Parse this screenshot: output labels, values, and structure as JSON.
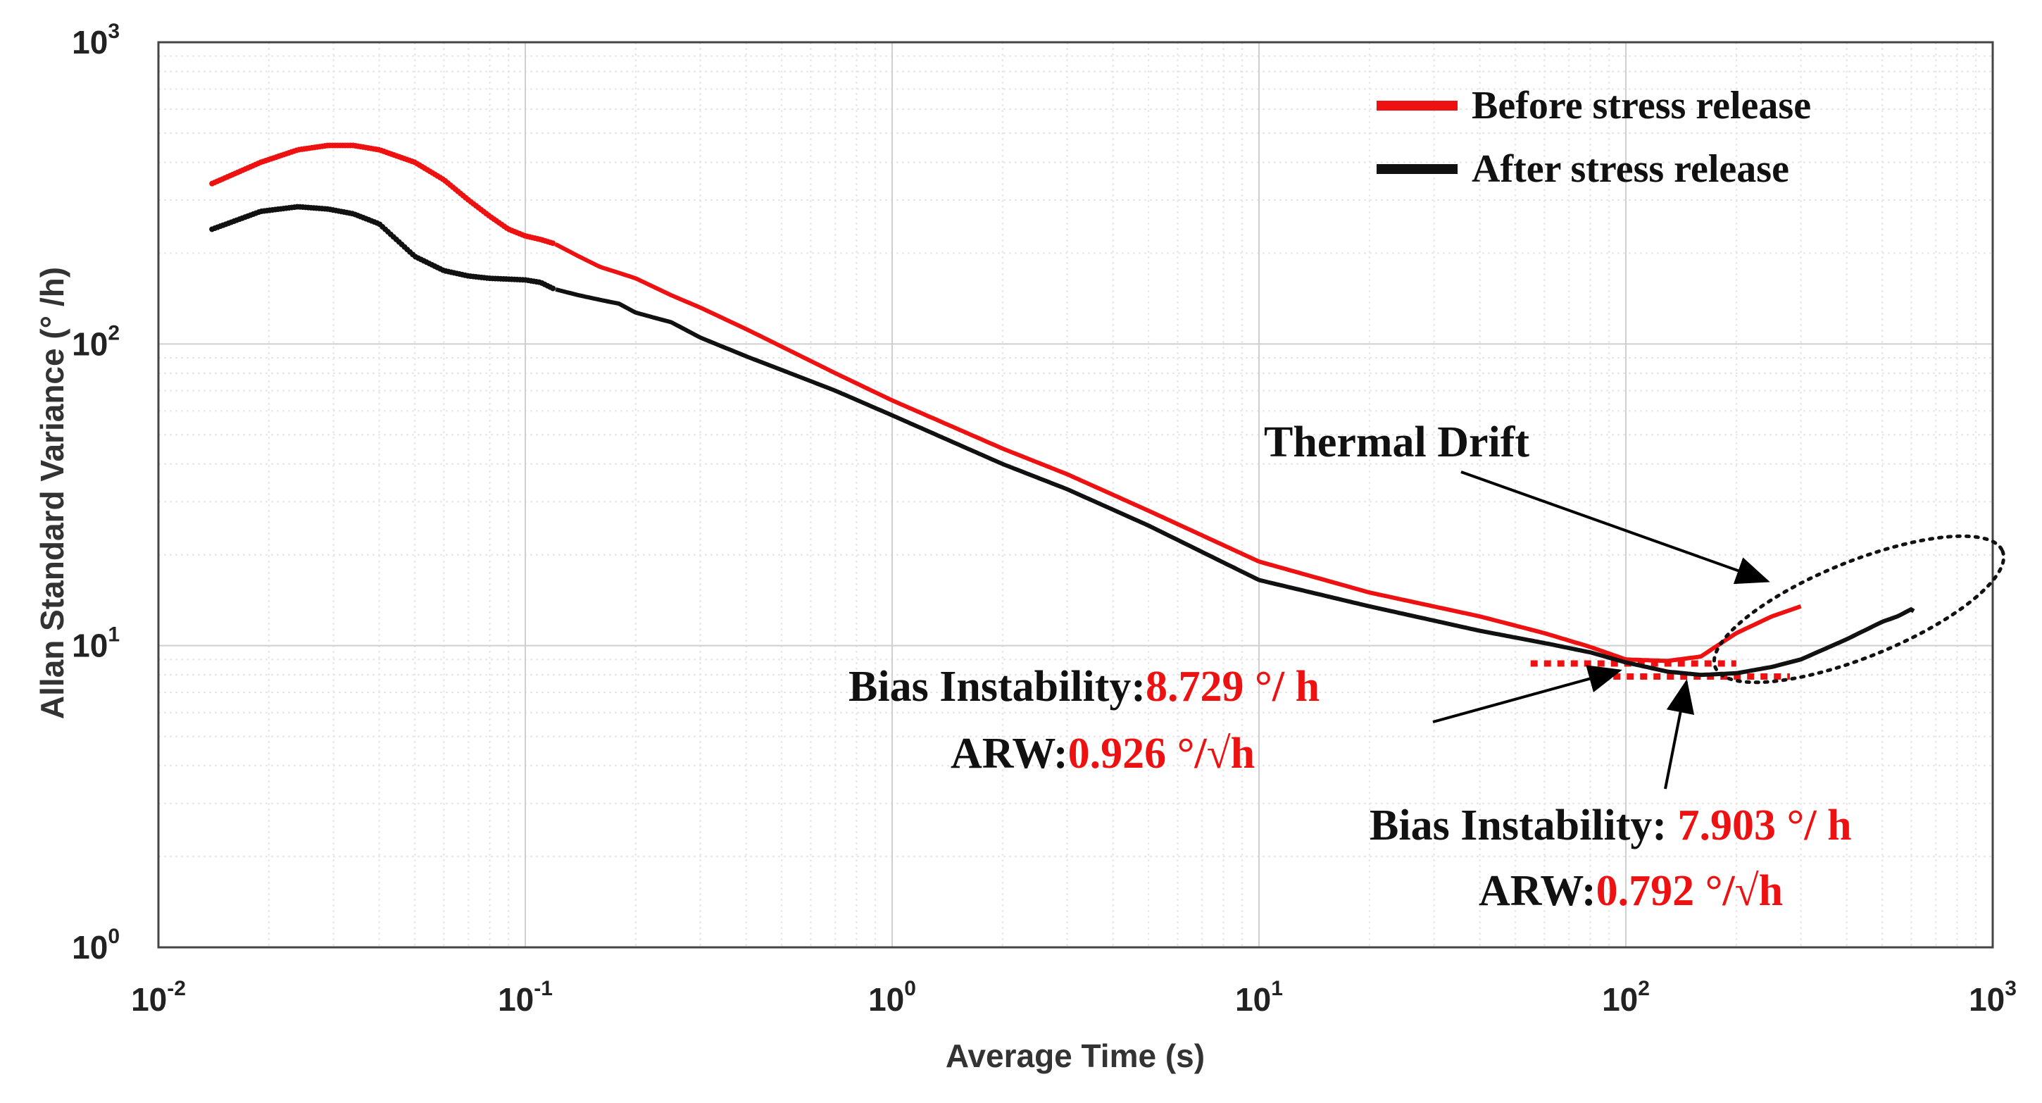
{
  "chart_data": {
    "type": "line",
    "xscale": "log",
    "yscale": "log",
    "xlim": [
      0.01,
      1000
    ],
    "ylim": [
      1,
      1000
    ],
    "xlabel": "Average Time (s)",
    "ylabel": "Allan Standard Variance (° /h)",
    "grid": true,
    "legend_position": "top-right",
    "x_ticks": [
      {
        "base": "10",
        "exp": "-2"
      },
      {
        "base": "10",
        "exp": "-1"
      },
      {
        "base": "10",
        "exp": "0"
      },
      {
        "base": "10",
        "exp": "1"
      },
      {
        "base": "10",
        "exp": "2"
      },
      {
        "base": "10",
        "exp": "3"
      }
    ],
    "y_ticks": [
      {
        "base": "10",
        "exp": "0"
      },
      {
        "base": "10",
        "exp": "1"
      },
      {
        "base": "10",
        "exp": "2"
      },
      {
        "base": "10",
        "exp": "3"
      }
    ],
    "series": [
      {
        "name": "Before stress release",
        "color": "#ee1111",
        "points": [
          [
            0.014,
            340
          ],
          [
            0.019,
            400
          ],
          [
            0.024,
            440
          ],
          [
            0.029,
            455
          ],
          [
            0.034,
            455
          ],
          [
            0.04,
            440
          ],
          [
            0.05,
            400
          ],
          [
            0.06,
            350
          ],
          [
            0.07,
            300
          ],
          [
            0.08,
            265
          ],
          [
            0.09,
            240
          ],
          [
            0.1,
            228
          ],
          [
            0.11,
            222
          ],
          [
            0.12,
            215
          ],
          [
            0.14,
            195
          ],
          [
            0.16,
            180
          ],
          [
            0.18,
            172
          ],
          [
            0.2,
            165
          ],
          [
            0.25,
            145
          ],
          [
            0.3,
            132
          ],
          [
            0.4,
            112
          ],
          [
            0.5,
            98
          ],
          [
            0.7,
            80
          ],
          [
            1,
            65
          ],
          [
            2,
            45
          ],
          [
            3,
            37
          ],
          [
            5,
            28
          ],
          [
            10,
            19
          ],
          [
            20,
            15
          ],
          [
            40,
            12.5
          ],
          [
            60,
            11
          ],
          [
            80,
            9.9
          ],
          [
            100,
            9.0
          ],
          [
            130,
            8.9
          ],
          [
            160,
            9.2
          ],
          [
            200,
            11
          ],
          [
            250,
            12.5
          ],
          [
            300,
            13.5
          ]
        ]
      },
      {
        "name": "After stress release",
        "color": "#111111",
        "points": [
          [
            0.014,
            240
          ],
          [
            0.019,
            275
          ],
          [
            0.024,
            285
          ],
          [
            0.029,
            280
          ],
          [
            0.034,
            270
          ],
          [
            0.04,
            250
          ],
          [
            0.05,
            195
          ],
          [
            0.06,
            175
          ],
          [
            0.07,
            168
          ],
          [
            0.08,
            165
          ],
          [
            0.09,
            164
          ],
          [
            0.1,
            163
          ],
          [
            0.11,
            160
          ],
          [
            0.12,
            152
          ],
          [
            0.14,
            145
          ],
          [
            0.16,
            140
          ],
          [
            0.18,
            136
          ],
          [
            0.2,
            127
          ],
          [
            0.25,
            118
          ],
          [
            0.3,
            105
          ],
          [
            0.4,
            91
          ],
          [
            0.5,
            82
          ],
          [
            0.7,
            70
          ],
          [
            1,
            58
          ],
          [
            2,
            40
          ],
          [
            3,
            33
          ],
          [
            5,
            25
          ],
          [
            10,
            16.5
          ],
          [
            20,
            13.5
          ],
          [
            40,
            11.2
          ],
          [
            60,
            10.2
          ],
          [
            80,
            9.5
          ],
          [
            100,
            8.8
          ],
          [
            130,
            8.2
          ],
          [
            160,
            8.0
          ],
          [
            200,
            8.1
          ],
          [
            250,
            8.5
          ],
          [
            300,
            9.0
          ],
          [
            400,
            10.5
          ],
          [
            500,
            12.0
          ],
          [
            550,
            12.5
          ],
          [
            600,
            13.2
          ],
          [
            620,
            12.8
          ]
        ]
      }
    ],
    "reference_lines": [
      {
        "color": "#ee1111",
        "x_range": [
          55,
          200
        ],
        "y": 8.729
      },
      {
        "color": "#ee1111",
        "x_range": [
          85,
          280
        ],
        "y": 7.903
      }
    ],
    "annotations": {
      "thermal_drift": "Thermal Drift",
      "before_bias_label": "Bias Instability:",
      "before_bias_value": "8.729 °/ h",
      "before_arw_label": "ARW:",
      "before_arw_value": "0.926 °/√h",
      "after_bias_label": "Bias Instability: ",
      "after_bias_value": "7.903 °/ h",
      "after_arw_label": "ARW:",
      "after_arw_value": "0.792 °/√h"
    }
  }
}
